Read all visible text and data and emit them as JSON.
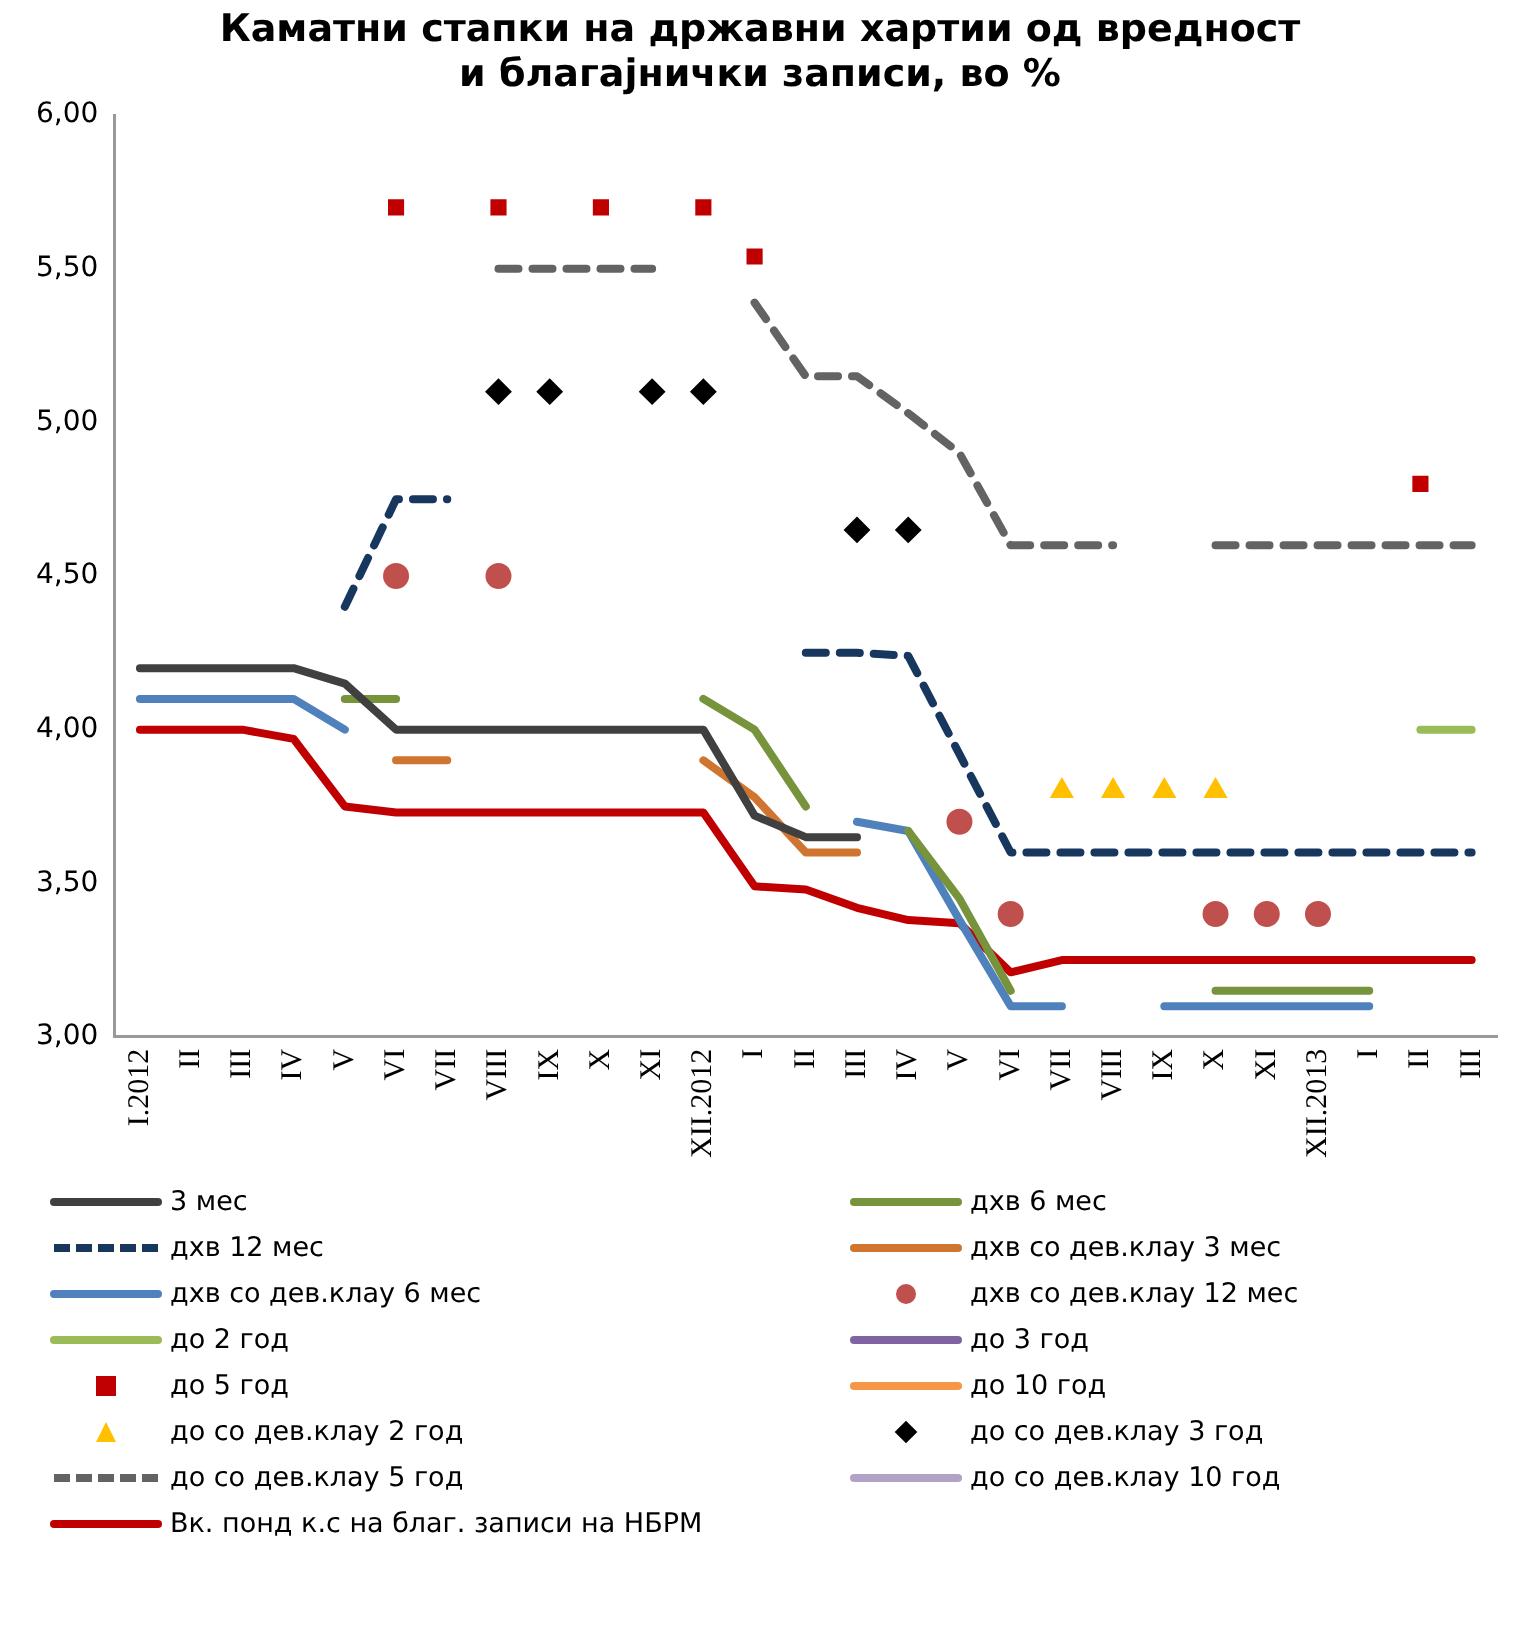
{
  "chart_data": {
    "type": "line",
    "title": "Каматни стапки на државни хартии од вредност\nи благајнички записи, во %",
    "categories": [
      "I.2012",
      "II",
      "III",
      "IV",
      "V",
      "VI",
      "VII",
      "VIII",
      "IX",
      "X",
      "XI",
      "XII.2012",
      "I",
      "II",
      "III",
      "IV",
      "V",
      "VI",
      "VII",
      "VIII",
      "IX",
      "X",
      "XI",
      "XII.2013",
      "I",
      "II",
      "III"
    ],
    "ylim": [
      3,
      6
    ],
    "yticks": [
      {
        "value": 3,
        "label": "3,00"
      },
      {
        "value": 3.5,
        "label": "3,50"
      },
      {
        "value": 4,
        "label": "4,00"
      },
      {
        "value": 4.5,
        "label": "4,50"
      },
      {
        "value": 5,
        "label": "5,00"
      },
      {
        "value": 5.5,
        "label": "5,50"
      },
      {
        "value": 6,
        "label": "6,00"
      }
    ],
    "grid": false,
    "legend": "bottom",
    "series": [
      {
        "name": "3 мес",
        "line_style": "solid",
        "color": "#404040",
        "values": [
          4.2,
          4.2,
          4.2,
          4.2,
          4.15,
          4.0,
          4.0,
          4.0,
          4.0,
          4.0,
          4.0,
          4.0,
          3.72,
          3.65,
          3.65,
          null,
          null,
          null,
          null,
          null,
          null,
          null,
          null,
          null,
          null,
          null,
          null
        ]
      },
      {
        "name": "дхв 6 мес",
        "line_style": "solid",
        "color": "#77933c",
        "values": [
          null,
          null,
          null,
          null,
          4.1,
          4.1,
          null,
          null,
          null,
          null,
          null,
          4.1,
          4.0,
          3.75,
          null,
          3.67,
          3.45,
          3.15,
          null,
          null,
          null,
          3.15,
          3.15,
          3.15,
          3.15,
          null,
          null
        ]
      },
      {
        "name": "дхв 12 мес",
        "line_style": "dashed",
        "color": "#17375e",
        "values": [
          null,
          null,
          null,
          null,
          4.4,
          4.75,
          4.75,
          null,
          null,
          null,
          null,
          null,
          null,
          4.25,
          4.25,
          4.24,
          3.92,
          3.6,
          3.6,
          3.6,
          3.6,
          3.6,
          3.6,
          3.6,
          3.6,
          3.6,
          3.6
        ]
      },
      {
        "name": "дхв со дев.клау 3 мес",
        "line_style": "solid",
        "color": "#d07530",
        "values": [
          null,
          null,
          null,
          null,
          null,
          3.9,
          3.9,
          null,
          null,
          null,
          null,
          3.9,
          3.78,
          3.6,
          3.6,
          null,
          null,
          null,
          null,
          null,
          null,
          null,
          null,
          null,
          null,
          null,
          null
        ]
      },
      {
        "name": "дхв со дев.клау 6 мес",
        "line_style": "solid",
        "color": "#4f81bd",
        "values": [
          4.1,
          4.1,
          4.1,
          4.1,
          4.0,
          null,
          null,
          null,
          null,
          null,
          null,
          null,
          null,
          null,
          3.7,
          3.67,
          3.38,
          3.1,
          3.1,
          null,
          3.1,
          3.1,
          3.1,
          3.1,
          3.1,
          null,
          null
        ]
      },
      {
        "name": "дхв со дев.клау 12 мес",
        "type": "scatter",
        "marker": "circle",
        "color": "#c0504d",
        "values": [
          null,
          null,
          null,
          null,
          null,
          4.5,
          null,
          4.5,
          null,
          null,
          null,
          null,
          null,
          null,
          null,
          null,
          3.7,
          3.4,
          null,
          null,
          null,
          3.4,
          3.4,
          3.4,
          null,
          null,
          null
        ]
      },
      {
        "name": "до 2 год",
        "line_style": "solid",
        "color": "#9bbb59",
        "values": [
          null,
          null,
          null,
          null,
          null,
          null,
          null,
          null,
          null,
          null,
          null,
          null,
          null,
          null,
          null,
          null,
          null,
          null,
          null,
          null,
          null,
          null,
          null,
          null,
          null,
          4.0,
          4.0
        ]
      },
      {
        "name": "до 3 год",
        "line_style": "solid",
        "color": "#8064a2",
        "values": [
          null,
          null,
          null,
          null,
          null,
          null,
          null,
          null,
          null,
          null,
          null,
          null,
          null,
          null,
          null,
          null,
          null,
          null,
          null,
          null,
          null,
          null,
          null,
          null,
          null,
          null,
          null
        ]
      },
      {
        "name": "до 5 год",
        "type": "scatter",
        "marker": "square",
        "color": "#c00000",
        "values": [
          null,
          null,
          null,
          null,
          null,
          5.7,
          null,
          5.7,
          null,
          5.7,
          null,
          5.7,
          5.54,
          null,
          null,
          null,
          null,
          null,
          null,
          null,
          null,
          null,
          null,
          null,
          null,
          4.8,
          null
        ]
      },
      {
        "name": "до 10 год",
        "line_style": "solid",
        "color": "#f79646",
        "values": [
          null,
          null,
          null,
          null,
          null,
          null,
          null,
          null,
          null,
          null,
          null,
          null,
          null,
          null,
          null,
          null,
          null,
          null,
          null,
          null,
          null,
          null,
          null,
          null,
          null,
          null,
          null
        ]
      },
      {
        "name": "до со дев.клау 2 год",
        "type": "scatter",
        "marker": "triangle",
        "color": "#ffc000",
        "values": [
          null,
          null,
          null,
          null,
          null,
          null,
          null,
          null,
          null,
          null,
          null,
          null,
          null,
          null,
          null,
          null,
          null,
          null,
          3.8,
          3.8,
          3.8,
          3.8,
          null,
          null,
          null,
          null,
          null
        ]
      },
      {
        "name": "до со дев.клау 3 год",
        "type": "scatter",
        "marker": "diamond",
        "color": "#000000",
        "values": [
          null,
          null,
          null,
          null,
          null,
          null,
          null,
          5.1,
          5.1,
          null,
          5.1,
          5.1,
          null,
          null,
          4.65,
          4.65,
          null,
          null,
          null,
          null,
          null,
          null,
          null,
          null,
          null,
          null,
          null
        ]
      },
      {
        "name": "до со дев.клау 5 год",
        "line_style": "dashed",
        "color": "#636363",
        "values": [
          null,
          null,
          null,
          null,
          null,
          null,
          null,
          5.5,
          5.5,
          5.5,
          5.5,
          null,
          5.39,
          5.15,
          5.15,
          5.03,
          4.9,
          4.6,
          4.6,
          4.6,
          null,
          4.6,
          4.6,
          4.6,
          4.6,
          4.6,
          4.6
        ]
      },
      {
        "name": "до со дев.клау 10 год",
        "line_style": "solid",
        "color": "#b3a2c7",
        "values": [
          null,
          null,
          null,
          null,
          null,
          null,
          null,
          null,
          null,
          null,
          null,
          null,
          null,
          null,
          null,
          null,
          null,
          null,
          null,
          null,
          null,
          null,
          null,
          null,
          null,
          null,
          null
        ]
      },
      {
        "name": "Вк. понд к.с на благ. записи на НБРМ",
        "line_style": "solid",
        "color": "#c00000",
        "values": [
          4.0,
          4.0,
          4.0,
          3.97,
          3.75,
          3.73,
          3.73,
          3.73,
          3.73,
          3.73,
          3.73,
          3.73,
          3.49,
          3.48,
          3.42,
          3.38,
          3.37,
          3.21,
          3.25,
          3.25,
          3.25,
          3.25,
          3.25,
          3.25,
          3.25,
          3.25,
          3.25
        ]
      }
    ]
  }
}
